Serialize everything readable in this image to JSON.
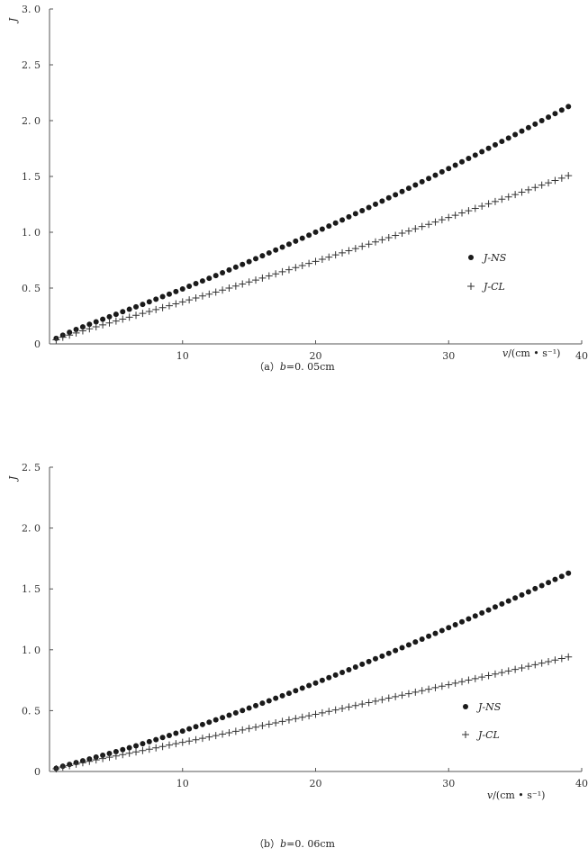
{
  "chart_data": [
    {
      "type": "scatter",
      "id": "a",
      "title": "",
      "caption_prefix": "（a）",
      "caption_var": "b",
      "caption_value": "=0. 05cm",
      "ylabel": "J",
      "xlabel_var": "v",
      "xlabel_unit": "/(cm • s⁻¹)",
      "xlim": [
        0,
        40
      ],
      "ylim": [
        0,
        3.0
      ],
      "xticks": [
        "10",
        "20",
        "30",
        "40"
      ],
      "yticks": [
        "0",
        "0. 5",
        "1. 0",
        "1. 5",
        "2. 0",
        "2. 5",
        "3. 0"
      ],
      "grid": false,
      "legend_position": "right-middle",
      "series": [
        {
          "name": "J-NS",
          "marker": "dot",
          "x": [
            0.5,
            1.0,
            1.5,
            2.0,
            2.5,
            3.0,
            3.5,
            4.0,
            4.5,
            5.0,
            5.5,
            6.0,
            6.5,
            7.0,
            7.5,
            8.0,
            8.5,
            9.0,
            9.5,
            10.0,
            10.5,
            11.0,
            11.5,
            12.0,
            12.5,
            13.0,
            13.5,
            14.0,
            14.5,
            15.0,
            15.5,
            16.0,
            16.5,
            17.0,
            17.5,
            18.0,
            18.5,
            19.0,
            19.5,
            20.0,
            20.5,
            21.0,
            21.5,
            22.0,
            22.5,
            23.0,
            23.5,
            24.0,
            24.5,
            25.0,
            25.5,
            26.0,
            26.5,
            27.0,
            27.5,
            28.0,
            28.5,
            29.0,
            29.5,
            30.0,
            30.5,
            31.0,
            31.5,
            32.0,
            32.5,
            33.0,
            33.5,
            34.0,
            34.5,
            35.0,
            35.5,
            36.0,
            36.5,
            37.0,
            37.5,
            38.0,
            38.5,
            39.0
          ],
          "y": [
            0.049,
            0.078,
            0.104,
            0.129,
            0.152,
            0.175,
            0.198,
            0.221,
            0.243,
            0.265,
            0.288,
            0.31,
            0.332,
            0.354,
            0.377,
            0.4,
            0.423,
            0.446,
            0.469,
            0.492,
            0.516,
            0.54,
            0.564,
            0.588,
            0.612,
            0.637,
            0.662,
            0.687,
            0.712,
            0.737,
            0.763,
            0.789,
            0.815,
            0.841,
            0.867,
            0.893,
            0.92,
            0.947,
            0.974,
            1.001,
            1.028,
            1.055,
            1.083,
            1.11,
            1.138,
            1.166,
            1.194,
            1.222,
            1.251,
            1.279,
            1.308,
            1.336,
            1.365,
            1.394,
            1.423,
            1.453,
            1.482,
            1.511,
            1.541,
            1.571,
            1.601,
            1.631,
            1.661,
            1.691,
            1.722,
            1.752,
            1.783,
            1.814,
            1.844,
            1.875,
            1.906,
            1.937,
            1.969,
            2.0,
            2.031,
            2.063,
            2.095,
            2.126
          ]
        },
        {
          "name": "J-CL",
          "marker": "plus",
          "x": [
            0.5,
            1.0,
            1.5,
            2.0,
            2.5,
            3.0,
            3.5,
            4.0,
            4.5,
            5.0,
            5.5,
            6.0,
            6.5,
            7.0,
            7.5,
            8.0,
            8.5,
            9.0,
            9.5,
            10.0,
            10.5,
            11.0,
            11.5,
            12.0,
            12.5,
            13.0,
            13.5,
            14.0,
            14.5,
            15.0,
            15.5,
            16.0,
            16.5,
            17.0,
            17.5,
            18.0,
            18.5,
            19.0,
            19.5,
            20.0,
            20.5,
            21.0,
            21.5,
            22.0,
            22.5,
            23.0,
            23.5,
            24.0,
            24.5,
            25.0,
            25.5,
            26.0,
            26.5,
            27.0,
            27.5,
            28.0,
            28.5,
            29.0,
            29.5,
            30.0,
            30.5,
            31.0,
            31.5,
            32.0,
            32.5,
            33.0,
            33.5,
            34.0,
            34.5,
            35.0,
            35.5,
            36.0,
            36.5,
            37.0,
            37.5,
            38.0,
            38.5,
            39.0
          ],
          "y": [
            0.036,
            0.059,
            0.079,
            0.098,
            0.117,
            0.135,
            0.153,
            0.17,
            0.188,
            0.205,
            0.222,
            0.239,
            0.256,
            0.273,
            0.29,
            0.307,
            0.325,
            0.342,
            0.359,
            0.376,
            0.394,
            0.411,
            0.429,
            0.446,
            0.464,
            0.482,
            0.5,
            0.518,
            0.536,
            0.554,
            0.572,
            0.59,
            0.609,
            0.627,
            0.646,
            0.664,
            0.683,
            0.702,
            0.721,
            0.739,
            0.758,
            0.777,
            0.797,
            0.816,
            0.835,
            0.854,
            0.874,
            0.893,
            0.913,
            0.932,
            0.952,
            0.972,
            0.992,
            1.011,
            1.031,
            1.051,
            1.071,
            1.092,
            1.112,
            1.132,
            1.152,
            1.173,
            1.193,
            1.214,
            1.234,
            1.255,
            1.275,
            1.296,
            1.317,
            1.338,
            1.359,
            1.38,
            1.401,
            1.422,
            1.443,
            1.464,
            1.485,
            1.507
          ]
        }
      ]
    },
    {
      "type": "scatter",
      "id": "b",
      "title": "",
      "caption_prefix": "（b）",
      "caption_var": "b",
      "caption_value": "=0. 06cm",
      "ylabel": "J",
      "xlabel_var": "v",
      "xlabel_unit": "/(cm • s⁻¹)",
      "xlim": [
        0,
        40
      ],
      "ylim": [
        0,
        2.5
      ],
      "xticks": [
        "10",
        "20",
        "30",
        "40"
      ],
      "yticks": [
        "0",
        "0. 5",
        "1. 0",
        "1. 5",
        "2. 0",
        "2. 5"
      ],
      "grid": false,
      "legend_position": "right-middle",
      "series": [
        {
          "name": "J-NS",
          "marker": "dot",
          "x": [
            0.5,
            1.0,
            1.5,
            2.0,
            2.5,
            3.0,
            3.5,
            4.0,
            4.5,
            5.0,
            5.5,
            6.0,
            6.5,
            7.0,
            7.5,
            8.0,
            8.5,
            9.0,
            9.5,
            10.0,
            10.5,
            11.0,
            11.5,
            12.0,
            12.5,
            13.0,
            13.5,
            14.0,
            14.5,
            15.0,
            15.5,
            16.0,
            16.5,
            17.0,
            17.5,
            18.0,
            18.5,
            19.0,
            19.5,
            20.0,
            20.5,
            21.0,
            21.5,
            22.0,
            22.5,
            23.0,
            23.5,
            24.0,
            24.5,
            25.0,
            25.5,
            26.0,
            26.5,
            27.0,
            27.5,
            28.0,
            28.5,
            29.0,
            29.5,
            30.0,
            30.5,
            31.0,
            31.5,
            32.0,
            32.5,
            33.0,
            33.5,
            34.0,
            34.5,
            35.0,
            35.5,
            36.0,
            36.5,
            37.0,
            37.5,
            38.0,
            38.5,
            39.0
          ],
          "y": [
            0.026,
            0.043,
            0.058,
            0.073,
            0.088,
            0.103,
            0.118,
            0.133,
            0.148,
            0.163,
            0.179,
            0.195,
            0.211,
            0.228,
            0.245,
            0.262,
            0.279,
            0.296,
            0.314,
            0.332,
            0.35,
            0.368,
            0.386,
            0.405,
            0.424,
            0.443,
            0.462,
            0.482,
            0.501,
            0.521,
            0.541,
            0.561,
            0.581,
            0.602,
            0.622,
            0.643,
            0.664,
            0.685,
            0.706,
            0.727,
            0.749,
            0.771,
            0.792,
            0.814,
            0.836,
            0.858,
            0.881,
            0.903,
            0.926,
            0.948,
            0.971,
            0.994,
            1.017,
            1.04,
            1.064,
            1.087,
            1.111,
            1.134,
            1.158,
            1.182,
            1.206,
            1.23,
            1.254,
            1.278,
            1.303,
            1.327,
            1.352,
            1.377,
            1.401,
            1.426,
            1.451,
            1.476,
            1.502,
            1.527,
            1.552,
            1.578,
            1.603,
            1.629
          ]
        },
        {
          "name": "J-CL",
          "marker": "plus",
          "x": [
            0.5,
            1.0,
            1.5,
            2.0,
            2.5,
            3.0,
            3.5,
            4.0,
            4.5,
            5.0,
            5.5,
            6.0,
            6.5,
            7.0,
            7.5,
            8.0,
            8.5,
            9.0,
            9.5,
            10.0,
            10.5,
            11.0,
            11.5,
            12.0,
            12.5,
            13.0,
            13.5,
            14.0,
            14.5,
            15.0,
            15.5,
            16.0,
            16.5,
            17.0,
            17.5,
            18.0,
            18.5,
            19.0,
            19.5,
            20.0,
            20.5,
            21.0,
            21.5,
            22.0,
            22.5,
            23.0,
            23.5,
            24.0,
            24.5,
            25.0,
            25.5,
            26.0,
            26.5,
            27.0,
            27.5,
            28.0,
            28.5,
            29.0,
            29.5,
            30.0,
            30.5,
            31.0,
            31.5,
            32.0,
            32.5,
            33.0,
            33.5,
            34.0,
            34.5,
            35.0,
            35.5,
            36.0,
            36.5,
            37.0,
            37.5,
            38.0,
            38.5,
            39.0
          ],
          "y": [
            0.022,
            0.036,
            0.048,
            0.06,
            0.072,
            0.083,
            0.095,
            0.106,
            0.117,
            0.128,
            0.139,
            0.15,
            0.161,
            0.172,
            0.183,
            0.194,
            0.205,
            0.217,
            0.228,
            0.239,
            0.25,
            0.261,
            0.273,
            0.284,
            0.295,
            0.307,
            0.318,
            0.33,
            0.341,
            0.353,
            0.364,
            0.376,
            0.388,
            0.399,
            0.411,
            0.423,
            0.435,
            0.446,
            0.458,
            0.47,
            0.482,
            0.494,
            0.506,
            0.518,
            0.53,
            0.542,
            0.554,
            0.566,
            0.578,
            0.59,
            0.603,
            0.615,
            0.627,
            0.639,
            0.652,
            0.664,
            0.676,
            0.689,
            0.701,
            0.713,
            0.726,
            0.738,
            0.751,
            0.763,
            0.776,
            0.788,
            0.801,
            0.813,
            0.826,
            0.839,
            0.851,
            0.864,
            0.877,
            0.89,
            0.902,
            0.915,
            0.928,
            0.941
          ]
        }
      ]
    }
  ]
}
